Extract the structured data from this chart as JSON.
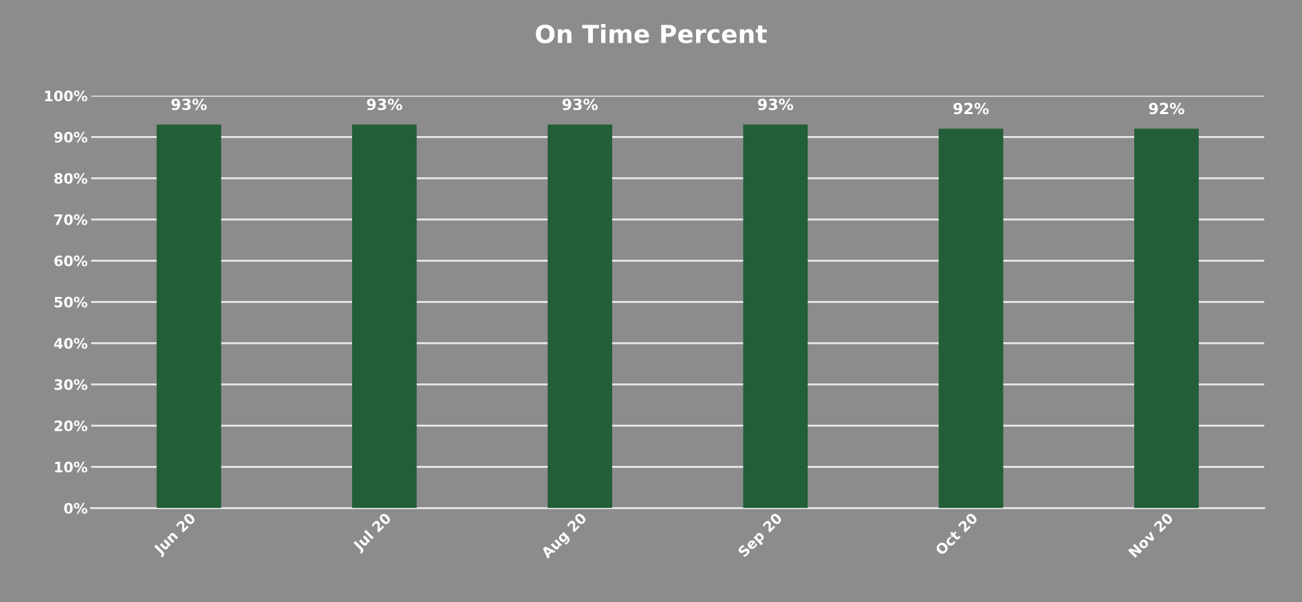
{
  "chart_data": {
    "type": "bar",
    "title": "On Time Percent",
    "categories": [
      "Jun 20",
      "Jul 20",
      "Aug 20",
      "Sep 20",
      "Oct 20",
      "Nov 20"
    ],
    "values": [
      93,
      93,
      93,
      93,
      92,
      92
    ],
    "value_labels": [
      "93%",
      "93%",
      "93%",
      "93%",
      "92%",
      "92%"
    ],
    "color": "#225e38",
    "ylim": [
      0,
      100
    ],
    "yticks": [
      {
        "value": 0,
        "label": "0%"
      },
      {
        "value": 10,
        "label": "10%"
      },
      {
        "value": 20,
        "label": "20%"
      },
      {
        "value": 30,
        "label": "30%"
      },
      {
        "value": 40,
        "label": "40%"
      },
      {
        "value": 50,
        "label": "50%"
      },
      {
        "value": 60,
        "label": "60%"
      },
      {
        "value": 70,
        "label": "70%"
      },
      {
        "value": 80,
        "label": "80%"
      },
      {
        "value": 90,
        "label": "90%"
      },
      {
        "value": 100,
        "label": "100%"
      }
    ],
    "grid": "y"
  }
}
